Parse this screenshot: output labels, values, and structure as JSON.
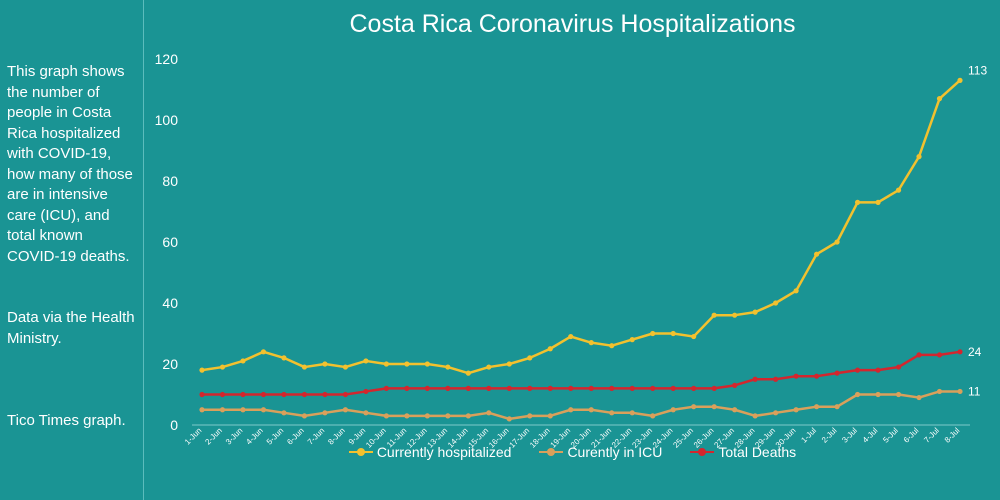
{
  "sidebar": {
    "description": "This graph shows the number of people in Costa Rica hospitalized with COVID-19, how many of those are in intensive care (ICU), and total known COVID-19 deaths.",
    "source": "Data via the Health Ministry.",
    "credit": "Tico Times graph."
  },
  "colors": {
    "background": "#1a9494",
    "hospitalized": "#f2c12e",
    "icu": "#d9a05b",
    "deaths": "#d3262e"
  },
  "chart_data": {
    "type": "line",
    "title": "Costa Rica Coronavirus Hospitalizations",
    "xlabel": "",
    "ylabel": "",
    "ylim": [
      0,
      120
    ],
    "yticks": [
      0,
      20,
      40,
      60,
      80,
      100,
      120
    ],
    "grid": false,
    "legend_position": "bottom",
    "x": [
      "1-Jun",
      "2-Jun",
      "3-Jun",
      "4-Jun",
      "5-Jun",
      "6-Jun",
      "7-Jun",
      "8-Jun",
      "9-Jun",
      "10-Jun",
      "11-Jun",
      "12-Jun",
      "13-Jun",
      "14-Jun",
      "15-Jun",
      "16-Jun",
      "17-Jun",
      "18-Jun",
      "19-Jun",
      "20-Jun",
      "21-Jun",
      "22-Jun",
      "23-Jun",
      "24-Jun",
      "25-Jun",
      "26-Jun",
      "27-Jun",
      "28-Jun",
      "29-Jun",
      "30-Jun",
      "1-Jul",
      "2-Jul",
      "3-Jul",
      "4-Jul",
      "5-Jul",
      "6-Jul",
      "7-Jul",
      "8-Jul"
    ],
    "series": [
      {
        "name": "Currently hospitalized",
        "color": "#f2c12e",
        "values": [
          18,
          19,
          21,
          24,
          22,
          19,
          20,
          19,
          21,
          20,
          20,
          20,
          19,
          17,
          19,
          20,
          22,
          25,
          29,
          27,
          26,
          28,
          30,
          30,
          29,
          36,
          36,
          37,
          40,
          44,
          56,
          60,
          73,
          73,
          77,
          88,
          107,
          113
        ],
        "end_label": "113"
      },
      {
        "name": "Curently in ICU",
        "color": "#d9a05b",
        "values": [
          5,
          5,
          5,
          5,
          4,
          3,
          4,
          5,
          4,
          3,
          3,
          3,
          3,
          3,
          4,
          2,
          3,
          3,
          5,
          5,
          4,
          4,
          3,
          5,
          6,
          6,
          5,
          3,
          4,
          5,
          6,
          6,
          10,
          10,
          10,
          9,
          11,
          11
        ],
        "end_label": "11"
      },
      {
        "name": "Total Deaths",
        "color": "#d3262e",
        "values": [
          10,
          10,
          10,
          10,
          10,
          10,
          10,
          10,
          11,
          12,
          12,
          12,
          12,
          12,
          12,
          12,
          12,
          12,
          12,
          12,
          12,
          12,
          12,
          12,
          12,
          12,
          13,
          15,
          15,
          16,
          16,
          17,
          18,
          18,
          19,
          23,
          23,
          24
        ],
        "end_label": "24"
      }
    ]
  }
}
